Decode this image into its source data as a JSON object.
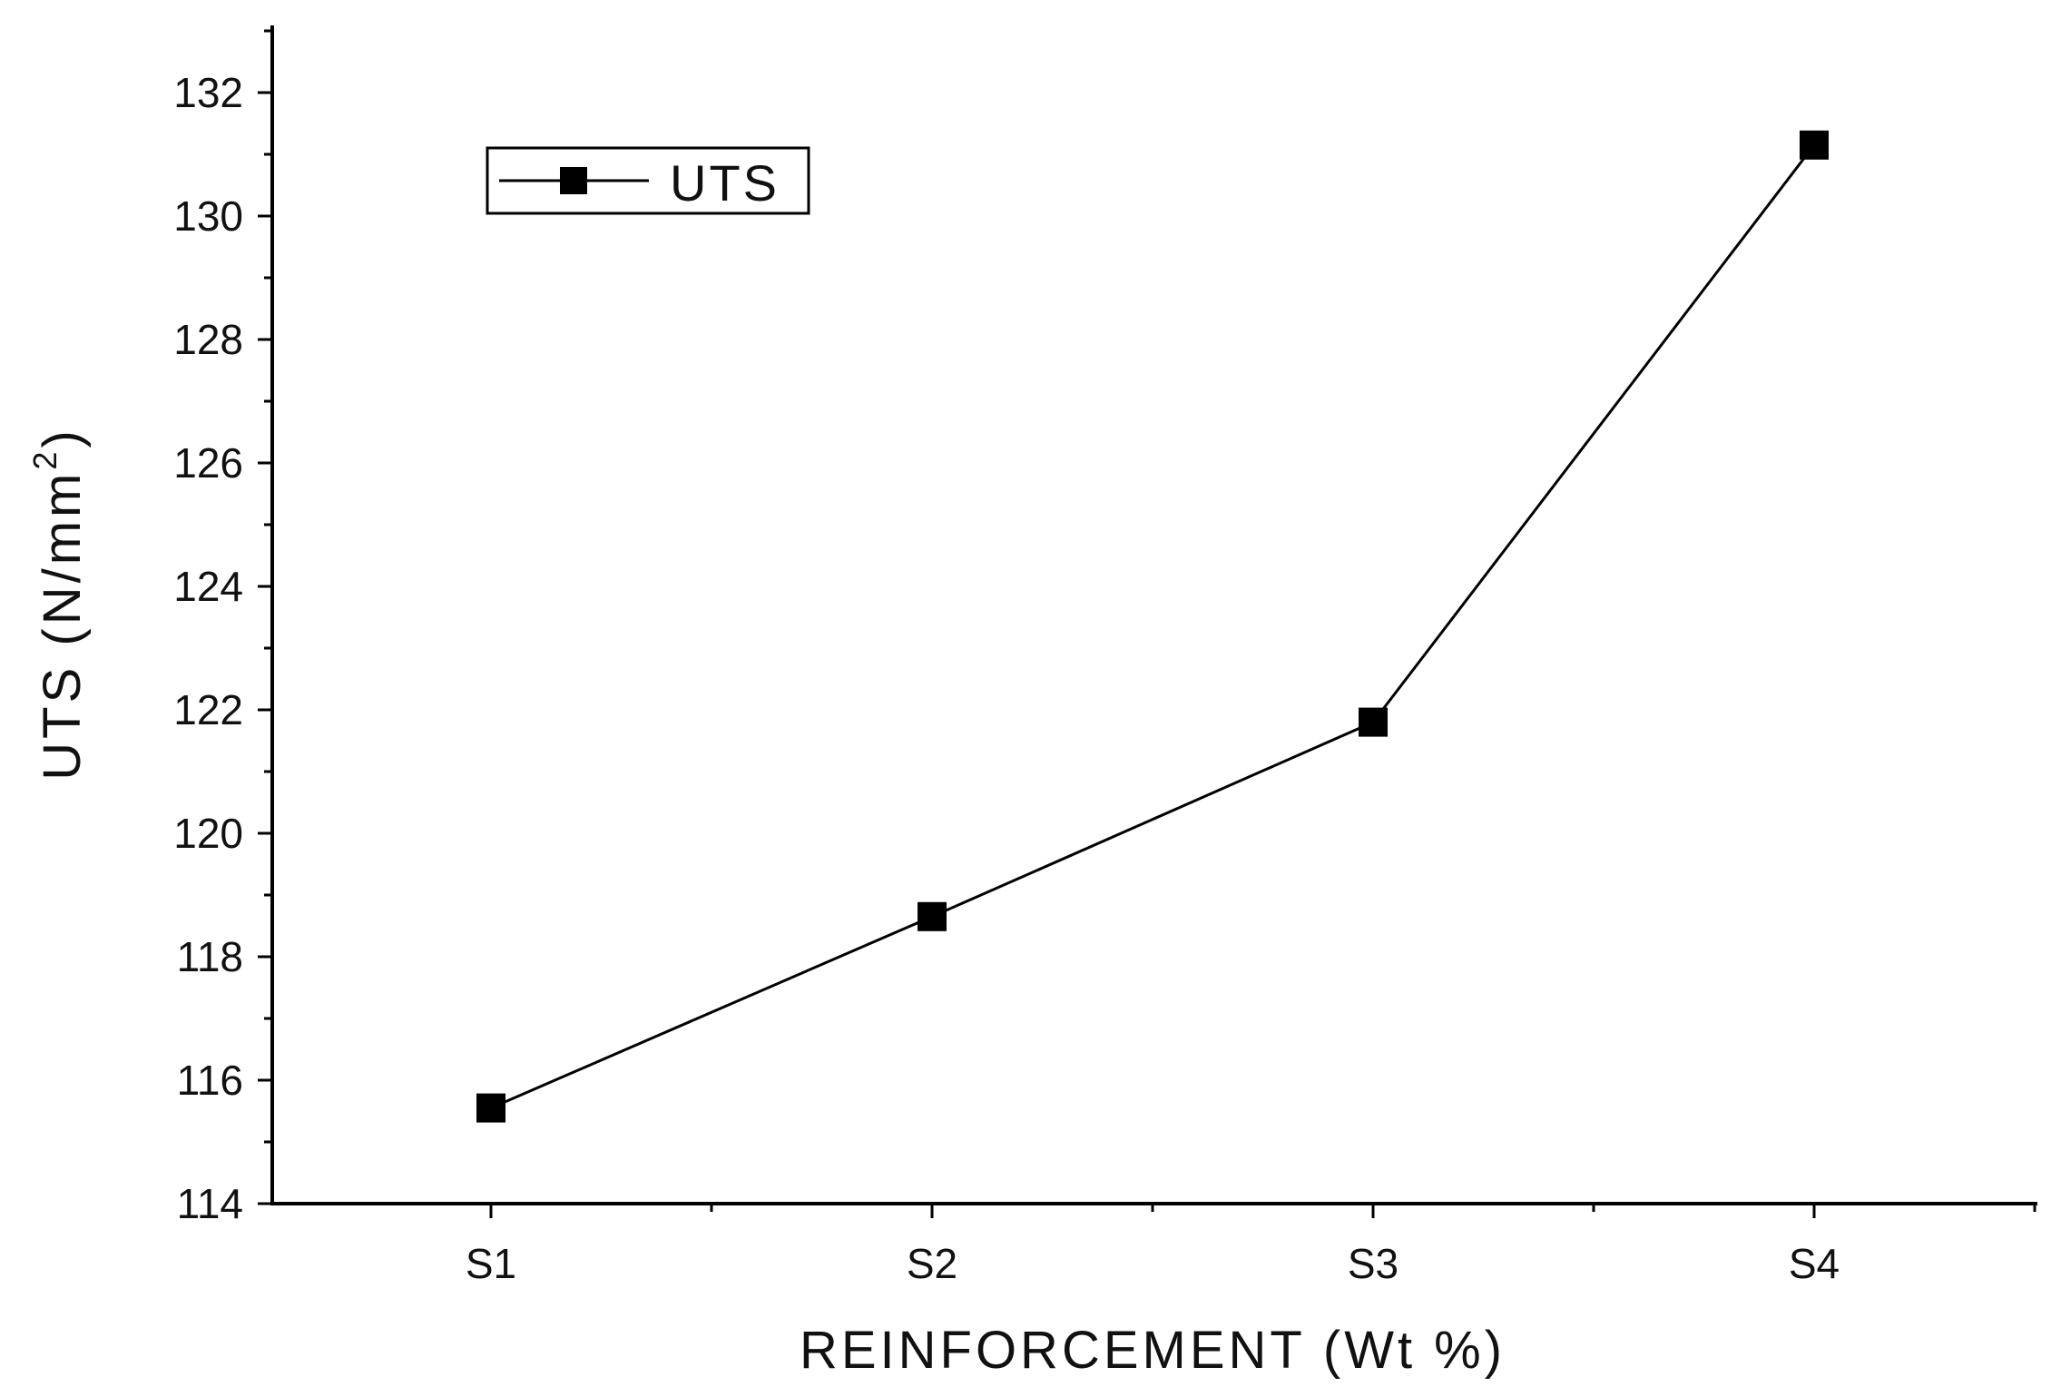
{
  "chart_data": {
    "type": "line",
    "categories": [
      "S1",
      "S2",
      "S3",
      "S4"
    ],
    "series": [
      {
        "name": "UTS",
        "values": [
          115.55,
          118.65,
          121.8,
          131.15
        ]
      }
    ],
    "xlabel": "REINFORCEMENT (Wt %)",
    "ylabel_main": "UTS (N/mm",
    "ylabel_sup": "2",
    "ylabel_close": ")",
    "ylim": [
      114,
      133
    ],
    "yticks": [
      "114",
      "116",
      "118",
      "120",
      "122",
      "124",
      "126",
      "128",
      "130",
      "132"
    ],
    "grid": false,
    "legend_position": "top-left",
    "line_color": "#000000",
    "marker": "square"
  }
}
